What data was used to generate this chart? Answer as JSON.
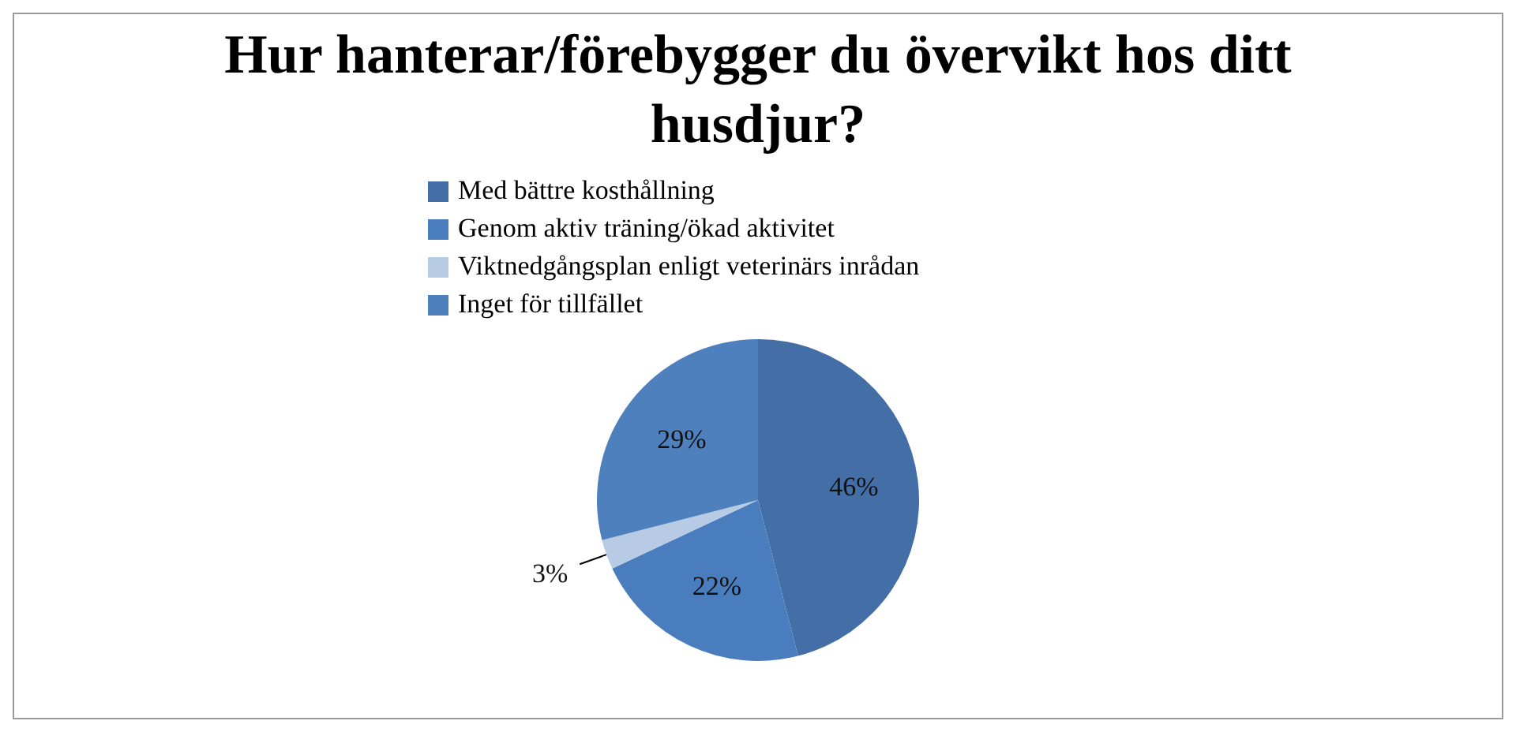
{
  "chart_data": {
    "type": "pie",
    "title": "Hur hanterar/förebygger du övervikt hos ditt husdjur?",
    "categories": [
      "Med bättre kosthållning",
      "Genom aktiv träning/ökad aktivitet",
      "Viktnedgångsplan enligt veterinärs inrådan",
      "Inget för tillfället"
    ],
    "values": [
      46,
      22,
      3,
      29
    ],
    "colors": [
      "#436ea6",
      "#4a7dbd",
      "#b7cbe4",
      "#4f80be"
    ],
    "value_labels": [
      "46%",
      "22%",
      "3%",
      "29%"
    ],
    "legend": "top"
  }
}
